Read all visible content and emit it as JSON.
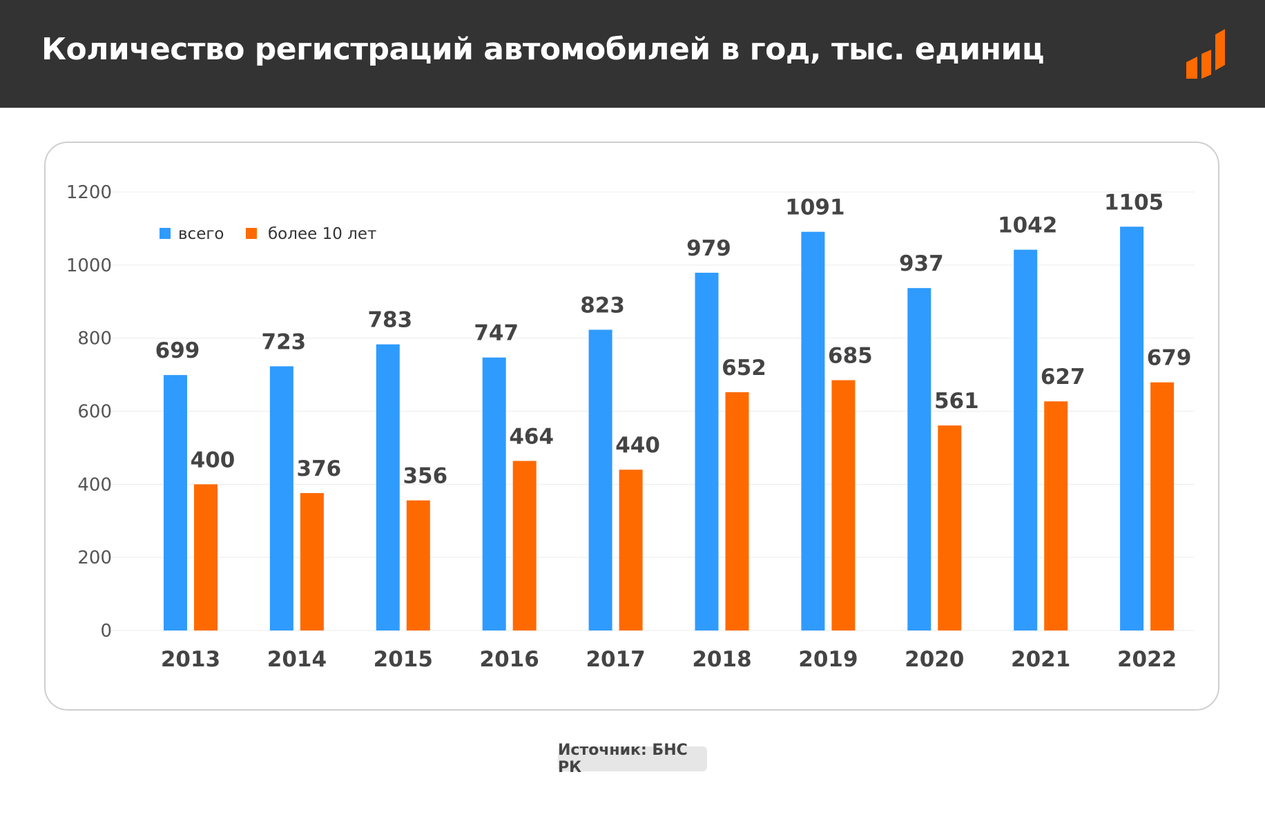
{
  "header": {
    "title": "Количество регистраций автомобилей в год, тыс. единиц"
  },
  "logo": {
    "icon": "brand-logo-icon",
    "color": "#ff6a00"
  },
  "source": {
    "text": "Источник: БНС РК"
  },
  "colors": {
    "header_bg": "#333333",
    "series_total": "#2f9bff",
    "series_old": "#ff6a00"
  },
  "chart_data": {
    "type": "bar",
    "title": "Количество регистраций автомобилей в год, тыс. единиц",
    "categories": [
      "2013",
      "2014",
      "2015",
      "2016",
      "2017",
      "2018",
      "2019",
      "2020",
      "2021",
      "2022"
    ],
    "series": [
      {
        "name": "всего",
        "color": "#2f9bff",
        "values": [
          699,
          723,
          783,
          747,
          823,
          979,
          1091,
          937,
          1042,
          1105
        ]
      },
      {
        "name": "более 10 лет",
        "color": "#ff6a00",
        "values": [
          400,
          376,
          356,
          464,
          440,
          652,
          685,
          561,
          627,
          679
        ]
      }
    ],
    "ylim": [
      0,
      1200
    ],
    "yticks": [
      0,
      200,
      400,
      600,
      800,
      1000,
      1200
    ],
    "xlabel": "",
    "ylabel": "",
    "grid": true,
    "legend": "top-left",
    "data_labels": true
  }
}
